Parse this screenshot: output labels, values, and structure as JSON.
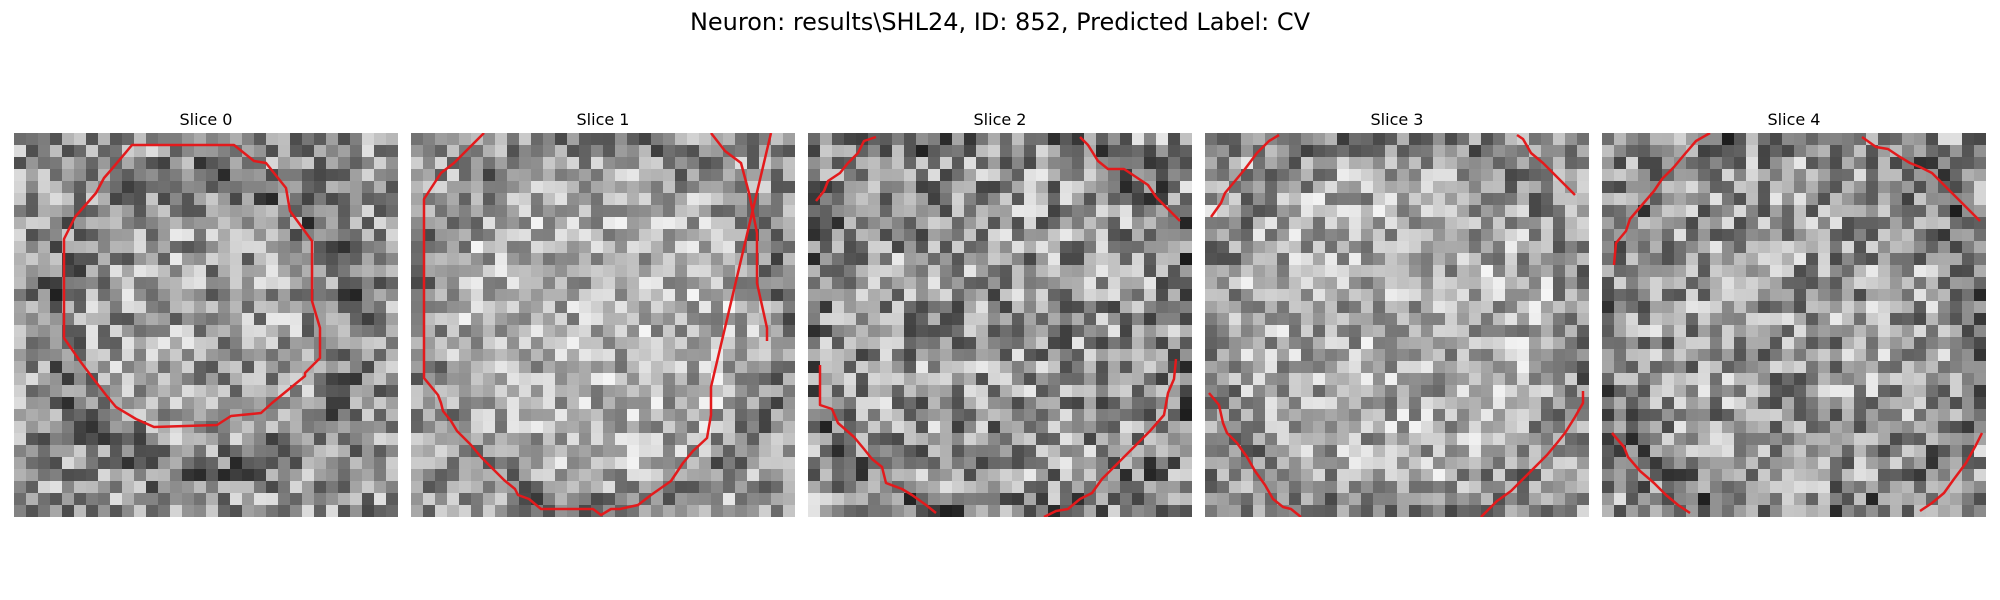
{
  "figure": {
    "title": "Neuron: results\\SHL24, ID: 852, Predicted Label: CV"
  },
  "panels": [
    {
      "title": "Slice 0"
    },
    {
      "title": "Slice 1"
    },
    {
      "title": "Slice 2"
    },
    {
      "title": "Slice 3"
    },
    {
      "title": "Slice 4"
    }
  ],
  "colors": {
    "contour": "#e31a1c",
    "background": "#ffffff"
  }
}
